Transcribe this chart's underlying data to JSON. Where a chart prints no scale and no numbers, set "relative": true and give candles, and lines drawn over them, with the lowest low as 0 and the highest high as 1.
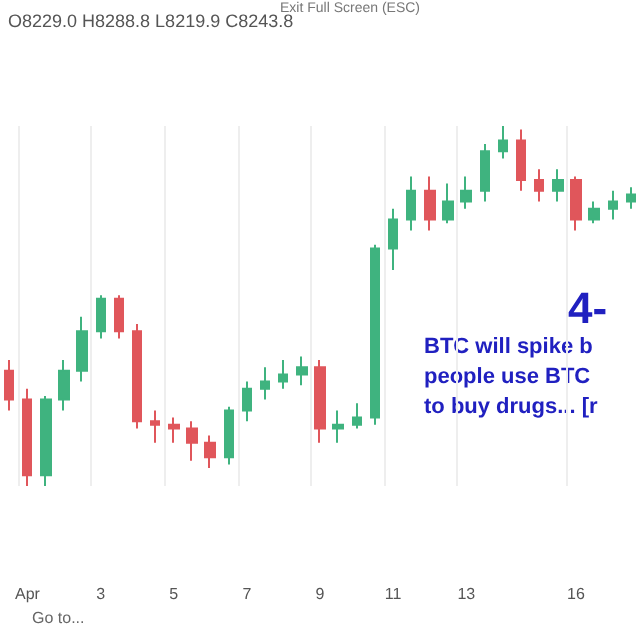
{
  "chart_data": {
    "type": "candlestick",
    "relative": true,
    "grid": true,
    "categories": [
      null,
      "Apr",
      null,
      null,
      null,
      "3",
      null,
      null,
      null,
      "5",
      null,
      null,
      null,
      "7",
      null,
      null,
      null,
      "9",
      null,
      null,
      null,
      "11",
      null,
      null,
      null,
      "13",
      null,
      null,
      null,
      null,
      null,
      "16",
      null,
      null,
      null
    ],
    "ohlc": [
      [
        0.32,
        0.35,
        0.21,
        0.24
      ],
      [
        0.24,
        0.27,
        0,
        0.03
      ],
      [
        0.03,
        0.25,
        0,
        0.24
      ],
      [
        0.24,
        0.35,
        0.21,
        0.32
      ],
      [
        0.32,
        0.47,
        0.29,
        0.43
      ],
      [
        0.43,
        0.53,
        0.41,
        0.52
      ],
      [
        0.52,
        0.53,
        0.41,
        0.43
      ],
      [
        0.43,
        0.45,
        0.16,
        0.18
      ],
      [
        0.18,
        0.21,
        0.12,
        0.17
      ],
      [
        0.17,
        0.19,
        0.12,
        0.16
      ],
      [
        0.16,
        0.18,
        0.07,
        0.12
      ],
      [
        0.12,
        0.14,
        0.05,
        0.08
      ],
      [
        0.08,
        0.22,
        0.06,
        0.21
      ],
      [
        0.21,
        0.29,
        0.18,
        0.27
      ],
      [
        0.27,
        0.33,
        0.24,
        0.29
      ],
      [
        0.29,
        0.35,
        0.27,
        0.31
      ],
      [
        0.31,
        0.36,
        0.28,
        0.33
      ],
      [
        0.33,
        0.35,
        0.12,
        0.16
      ],
      [
        0.16,
        0.21,
        0.12,
        0.17
      ],
      [
        0.17,
        0.23,
        0.16,
        0.19
      ],
      [
        0.19,
        0.67,
        0.17,
        0.66
      ],
      [
        0.66,
        0.77,
        0.6,
        0.74
      ],
      [
        0.74,
        0.86,
        0.71,
        0.82
      ],
      [
        0.82,
        0.86,
        0.71,
        0.74
      ],
      [
        0.74,
        0.84,
        0.73,
        0.79
      ],
      [
        0.79,
        0.86,
        0.77,
        0.82
      ],
      [
        0.82,
        0.95,
        0.79,
        0.93
      ],
      [
        0.93,
        1,
        0.91,
        0.96
      ],
      [
        0.96,
        0.99,
        0.82,
        0.85
      ],
      [
        0.85,
        0.88,
        0.79,
        0.82
      ],
      [
        0.82,
        0.88,
        0.79,
        0.85
      ],
      [
        0.85,
        0.86,
        0.71,
        0.74
      ],
      [
        0.74,
        0.79,
        0.73,
        0.77
      ],
      [
        0.77,
        0.82,
        0.74,
        0.79
      ],
      [
        0.79,
        0.83,
        0.77,
        0.81
      ]
    ],
    "annotations": [
      "O8229.0 H8288.8 L8219.9 C8243.8",
      "Exit Full Screen (ESC)",
      "4-",
      "BTC will spike b",
      "people use BTC",
      "to buy drugs... [r",
      "Go to..."
    ]
  }
}
